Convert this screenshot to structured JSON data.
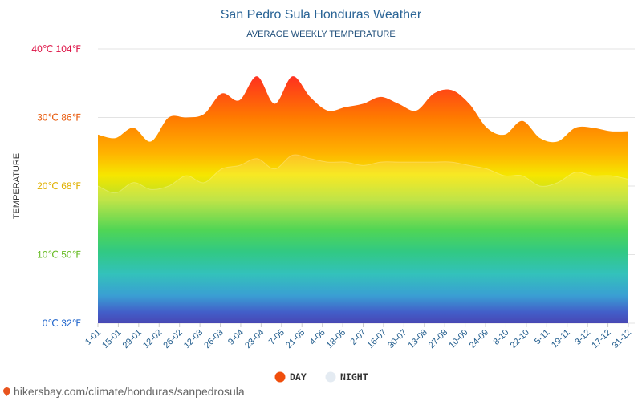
{
  "chart_data": {
    "type": "area",
    "title": "San Pedro Sula Honduras Weather",
    "subtitle": "AVERAGE WEEKLY TEMPERATURE",
    "ylabel": "TEMPERATURE",
    "ylim": [
      0,
      40
    ],
    "y_ticks": [
      {
        "value": 0,
        "label": "0℃ 32℉",
        "color": "#2266cc"
      },
      {
        "value": 10,
        "label": "10℃ 50℉",
        "color": "#66bb22"
      },
      {
        "value": 20,
        "label": "20℃ 68℉",
        "color": "#e0b000"
      },
      {
        "value": 30,
        "label": "30℃ 86℉",
        "color": "#e85a0c"
      },
      {
        "value": 40,
        "label": "40℃ 104℉",
        "color": "#dd1144"
      }
    ],
    "x_tick_labels": [
      "1-01",
      "15-01",
      "29-01",
      "12-02",
      "26-02",
      "12-03",
      "26-03",
      "9-04",
      "23-04",
      "7-05",
      "21-05",
      "4-06",
      "18-06",
      "2-07",
      "16-07",
      "30-07",
      "13-08",
      "27-08",
      "10-09",
      "24-09",
      "8-10",
      "22-10",
      "5-11",
      "19-11",
      "3-12",
      "17-12",
      "31-12"
    ],
    "series": [
      {
        "name": "DAY",
        "color": "#f04e0c",
        "values": [
          27.5,
          27,
          28.5,
          26.5,
          30,
          30,
          30.5,
          33.5,
          32.5,
          36,
          32,
          36,
          33,
          31,
          31.5,
          32,
          33,
          32,
          31,
          33.5,
          34,
          32,
          28.5,
          27.5,
          29.5,
          27,
          26.5,
          28.5,
          28.5,
          28,
          28
        ]
      },
      {
        "name": "NIGHT",
        "color": "#e4ebf2",
        "values": [
          20,
          19,
          20.5,
          19.5,
          20,
          21.5,
          20.5,
          22.5,
          23,
          24,
          22.5,
          24.5,
          24,
          23.5,
          23.5,
          23,
          23.5,
          23.5,
          23.5,
          23.5,
          23.5,
          23,
          22.5,
          21.5,
          21.5,
          20,
          20.5,
          22,
          21.5,
          21.5,
          21
        ]
      }
    ],
    "legend_position": "bottom-center",
    "grid": true
  },
  "footer": {
    "source_url": "hikersbay.com/climate/honduras/sanpedrosula"
  }
}
